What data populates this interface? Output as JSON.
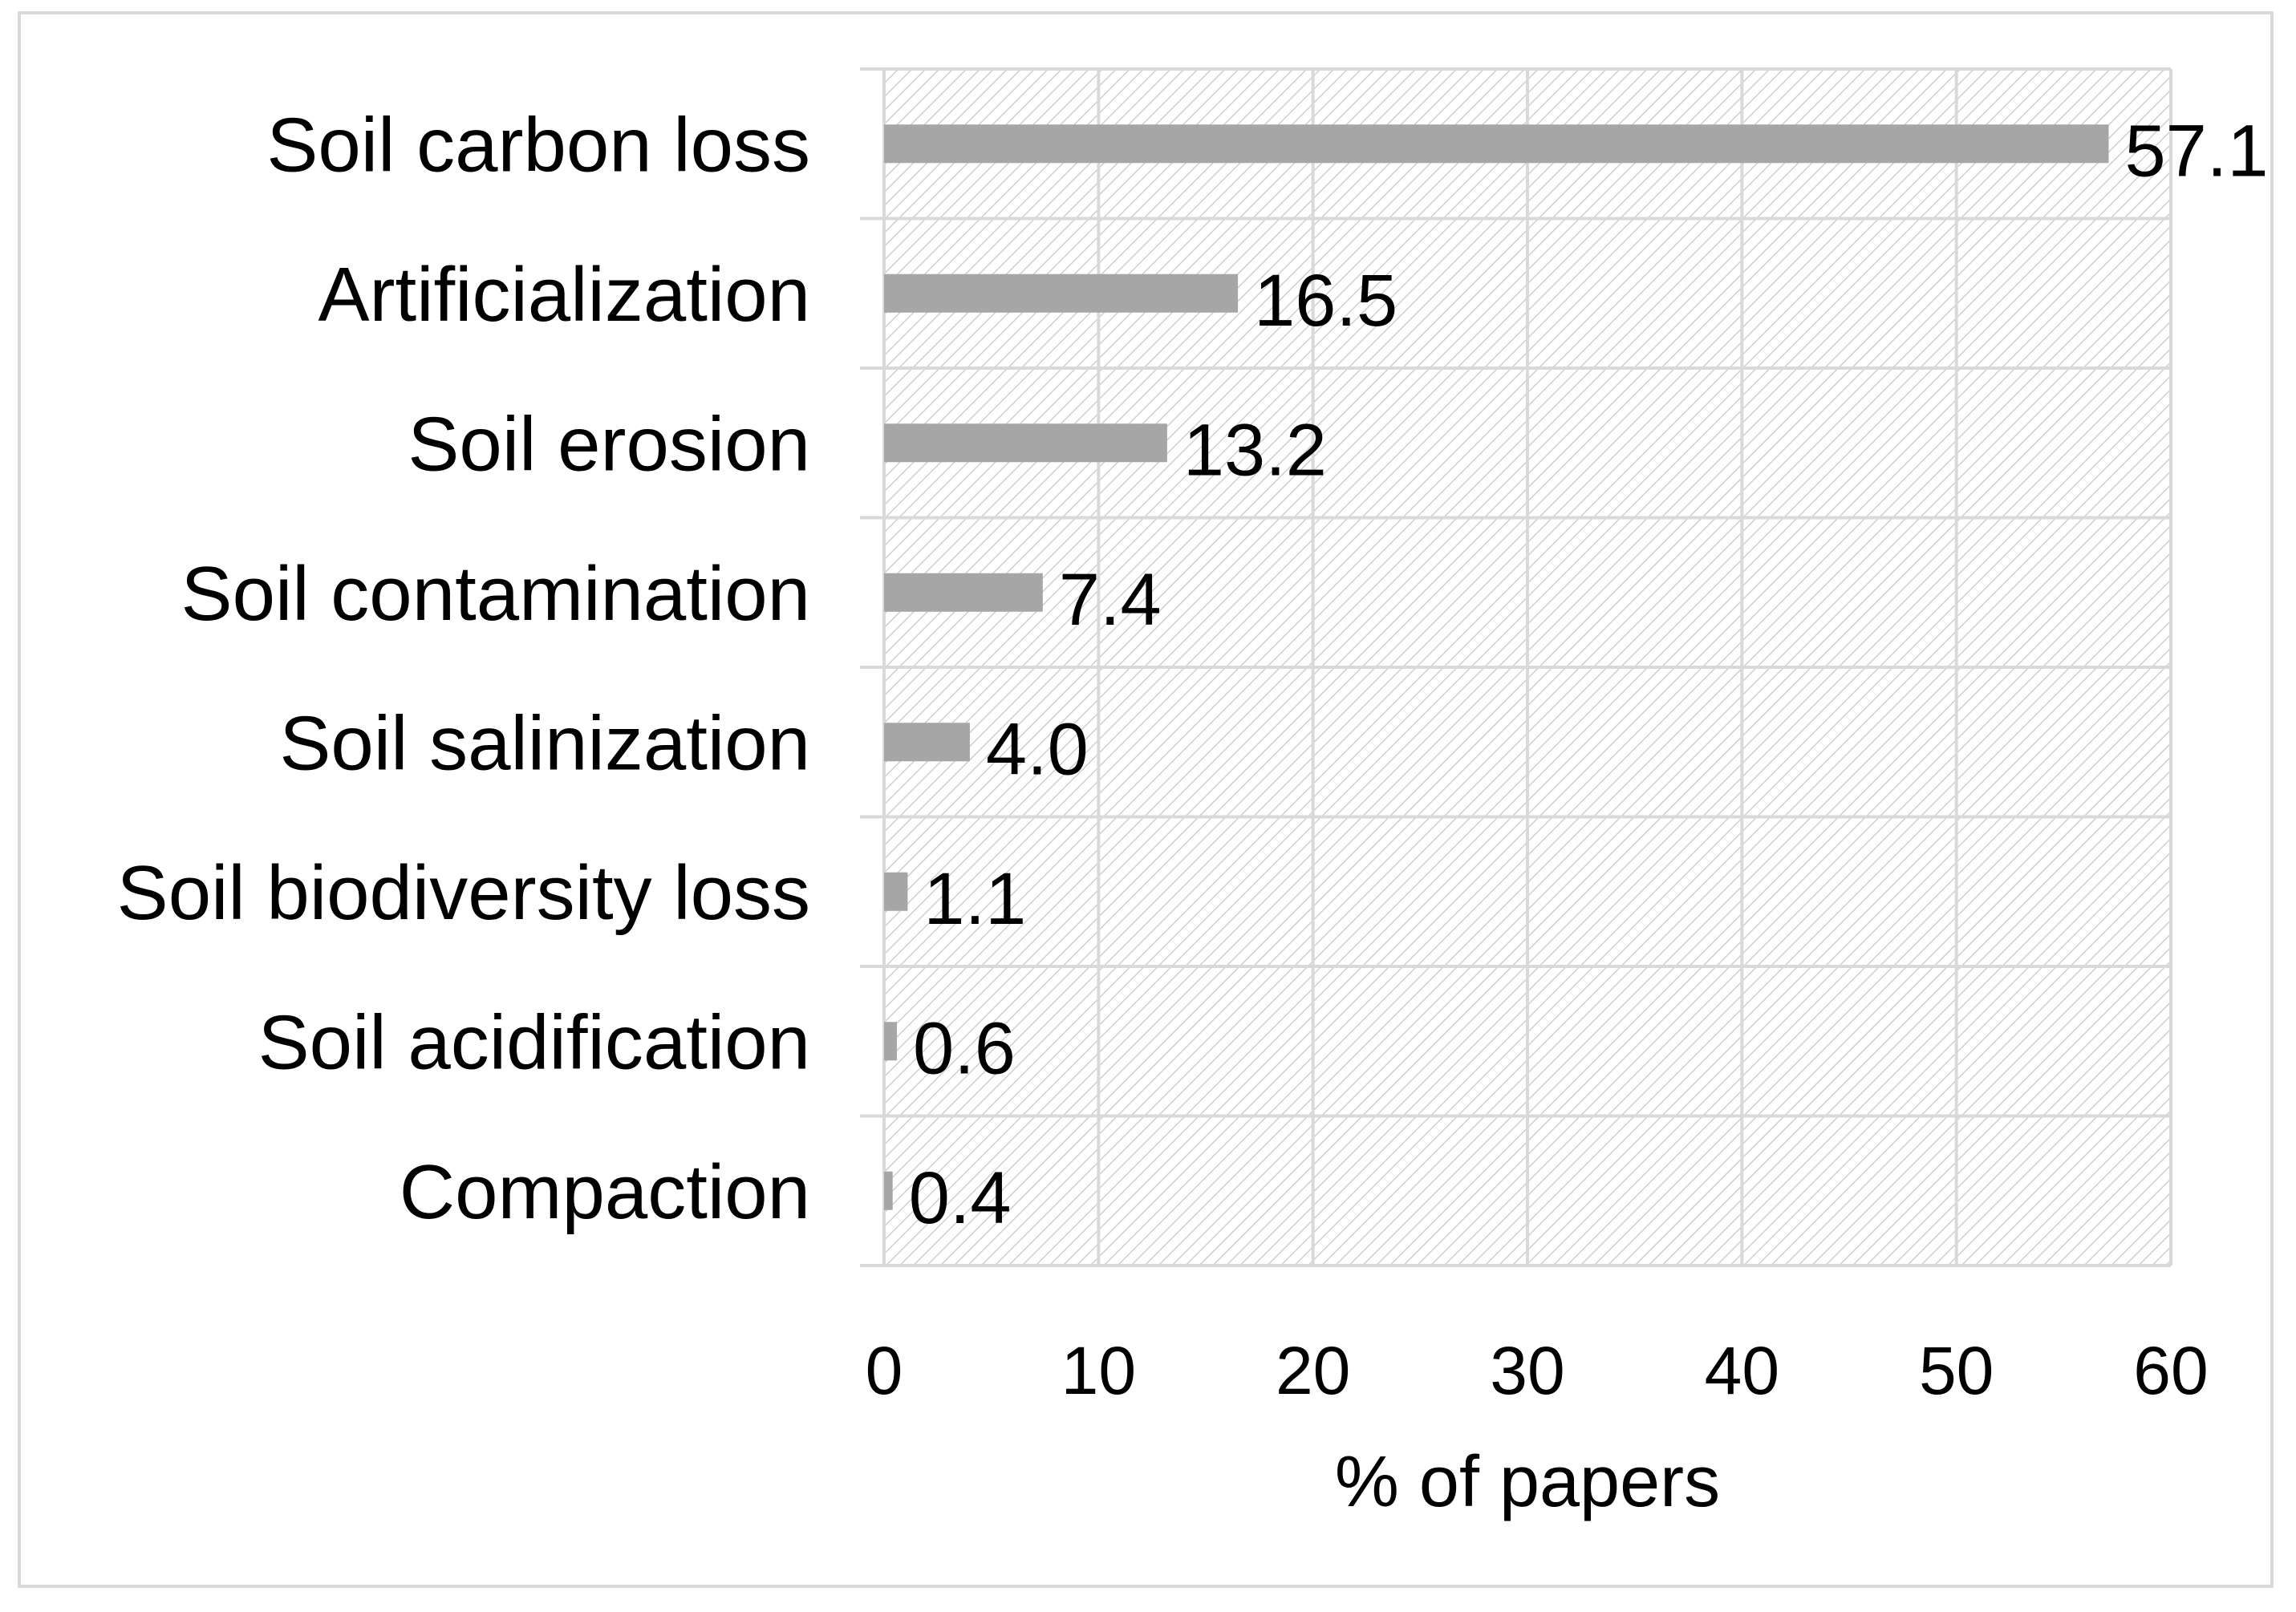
{
  "chart_data": {
    "type": "bar",
    "orientation": "horizontal",
    "title": "",
    "xlabel": "% of papers",
    "ylabel": "",
    "xlim": [
      0,
      60
    ],
    "xticks": [
      0,
      10,
      20,
      30,
      40,
      50,
      60
    ],
    "xtick_labels": [
      "0",
      "10",
      "20",
      "30",
      "40",
      "50",
      "60"
    ],
    "categories": [
      "Soil carbon loss",
      "Artificialization",
      "Soil erosion",
      "Soil contamination",
      "Soil salinization",
      "Soil biodiversity loss",
      "Soil acidification",
      "Compaction"
    ],
    "values": [
      57.1,
      16.5,
      13.2,
      7.4,
      4.0,
      1.1,
      0.6,
      0.4
    ],
    "value_labels": [
      "57.1",
      "16.5",
      "13.2",
      "7.4",
      "4.0",
      "1.1",
      "0.6",
      "0.4"
    ],
    "grid": true,
    "plot_background": "hatched light gray",
    "colors": {
      "bar": "#a6a6a6",
      "grid": "#d9d9d9",
      "hatch": "#cfcfcf",
      "text": "#000000"
    }
  }
}
